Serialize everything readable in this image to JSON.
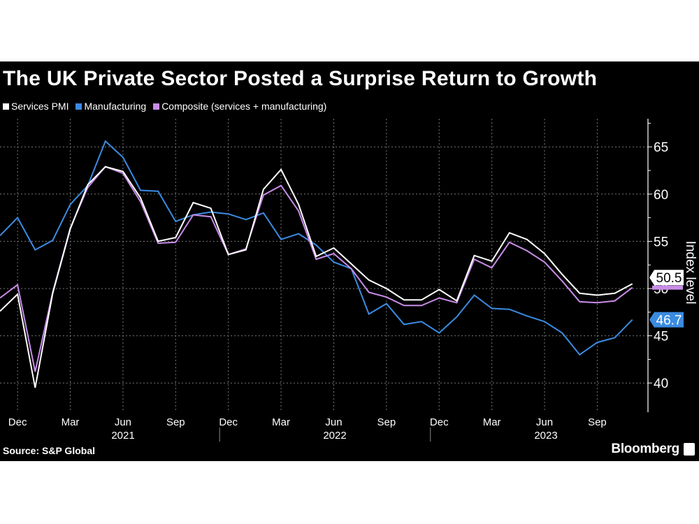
{
  "chart_data": {
    "type": "line",
    "title": "The UK Private Sector Posted a Surprise Return to Growth",
    "ylabel": "Index level",
    "xlabel": "",
    "ylim": [
      37,
      68
    ],
    "yticks": [
      40,
      45,
      50,
      55,
      60,
      65
    ],
    "ytick_labels": [
      "40",
      "45",
      "50",
      "55",
      "60",
      "65"
    ],
    "x_start": "2020-11",
    "x_end": "2023-11",
    "month_ticks": [
      "Dec",
      "Mar",
      "Jun",
      "Sep",
      "Dec",
      "Mar",
      "Jun",
      "Sep",
      "Dec",
      "Mar",
      "Jun",
      "Sep"
    ],
    "year_labels": [
      "2021",
      "2022",
      "2023"
    ],
    "grid": true,
    "legend_position": "top-left",
    "x": [
      "2020-11",
      "2020-12",
      "2021-01",
      "2021-02",
      "2021-03",
      "2021-04",
      "2021-05",
      "2021-06",
      "2021-07",
      "2021-08",
      "2021-09",
      "2021-10",
      "2021-11",
      "2021-12",
      "2022-01",
      "2022-02",
      "2022-03",
      "2022-04",
      "2022-05",
      "2022-06",
      "2022-07",
      "2022-08",
      "2022-09",
      "2022-10",
      "2022-11",
      "2022-12",
      "2023-01",
      "2023-02",
      "2023-03",
      "2023-04",
      "2023-05",
      "2023-06",
      "2023-07",
      "2023-08",
      "2023-09",
      "2023-10",
      "2023-11"
    ],
    "series": [
      {
        "name": "Services PMI",
        "color": "#ffffff",
        "values": [
          47.6,
          49.4,
          39.5,
          49.5,
          56.3,
          61.0,
          62.9,
          62.4,
          59.6,
          55.0,
          55.4,
          59.1,
          58.5,
          53.6,
          54.1,
          60.5,
          62.6,
          58.9,
          53.4,
          54.3,
          52.6,
          50.9,
          50.0,
          48.8,
          48.8,
          49.9,
          48.7,
          53.5,
          52.9,
          55.9,
          55.2,
          53.7,
          51.5,
          49.5,
          49.3,
          49.5,
          50.5
        ],
        "last_label": "50.5"
      },
      {
        "name": "Manufacturing",
        "color": "#3b8be0",
        "values": [
          55.6,
          57.5,
          54.1,
          55.1,
          58.9,
          60.9,
          65.6,
          63.9,
          60.4,
          60.3,
          57.1,
          57.8,
          58.1,
          57.9,
          57.3,
          58.0,
          55.2,
          55.8,
          54.6,
          52.8,
          52.1,
          47.3,
          48.4,
          46.2,
          46.5,
          45.3,
          47.0,
          49.3,
          47.9,
          47.8,
          47.1,
          46.5,
          45.3,
          43.0,
          44.3,
          44.8,
          46.7
        ],
        "last_label": "46.7"
      },
      {
        "name": "Composite (services + manufacturing)",
        "color": "#c98ce8",
        "values": [
          49.0,
          50.4,
          41.2,
          49.6,
          56.4,
          60.7,
          62.9,
          62.2,
          59.2,
          54.8,
          54.9,
          57.8,
          57.6,
          53.6,
          54.2,
          59.9,
          60.9,
          58.2,
          53.1,
          53.7,
          52.1,
          49.6,
          49.1,
          48.2,
          48.2,
          49.0,
          48.5,
          53.1,
          52.2,
          54.9,
          54.0,
          52.8,
          50.8,
          48.6,
          48.5,
          48.7,
          50.1
        ]
      }
    ]
  },
  "source": "Source: S&P Global",
  "brand": "Bloomberg"
}
